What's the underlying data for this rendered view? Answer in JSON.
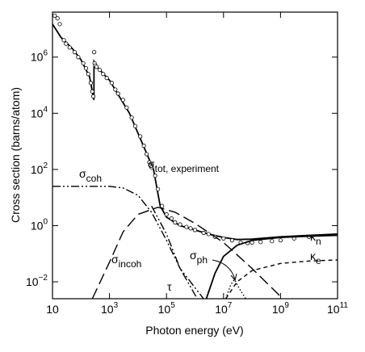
{
  "chart_data": {
    "type": "line",
    "xlabel": "Photon energy (eV)",
    "ylabel": "Cross section (barns/atom)",
    "xscale": "log",
    "yscale": "log",
    "xlim": [
      10,
      100000000000.0
    ],
    "ylim": [
      0.0025,
      40000000.0
    ],
    "xticks": [
      10,
      {
        "value": 1000,
        "label": "10",
        "sup": "3"
      },
      {
        "value": 100000,
        "label": "10",
        "sup": "5"
      },
      {
        "value": 10000000,
        "label": "10",
        "sup": "7"
      },
      {
        "value": 1000000000,
        "label": "10",
        "sup": "9"
      },
      {
        "value": 100000000000,
        "label": "10",
        "sup": "11"
      }
    ],
    "yticks": [
      {
        "value": 0.01,
        "label": "10",
        "sup": "−2"
      },
      {
        "value": 1,
        "label": "10",
        "sup": "0"
      },
      {
        "value": 100,
        "label": "10",
        "sup": "2"
      },
      {
        "value": 10000,
        "label": "10",
        "sup": "4"
      },
      {
        "value": 1000000,
        "label": "10",
        "sup": "6"
      }
    ],
    "series": [
      {
        "name": "σ",
        "name_sub": "tot, experiment",
        "color": "#000000",
        "style": "solid",
        "x": [
          10,
          20,
          50,
          100,
          200,
          284,
          285,
          400,
          1000,
          5000,
          35000,
          60000,
          100000,
          300000,
          1000000,
          3000000,
          10000000,
          30000000,
          100000000,
          1000000000,
          10000000000,
          100000000000
        ],
        "values": [
          15000000.0,
          5000000.0,
          2000000.0,
          800000.0,
          200000.0,
          30000.0,
          700000.0,
          400000.0,
          150000.0,
          10000.0,
          100,
          5,
          2,
          1,
          0.7,
          0.5,
          0.38,
          0.32,
          0.33,
          0.4,
          0.45,
          0.5
        ]
      },
      {
        "type": "scatter",
        "color": "#000000",
        "style": "circles",
        "x": [
          12,
          15,
          18,
          25,
          30,
          40,
          60,
          80,
          120,
          150,
          180,
          220,
          250,
          270,
          290,
          300,
          320,
          350,
          450,
          600,
          800,
          1200,
          1600,
          2000,
          3000,
          4000,
          6000,
          8000,
          12000,
          16000,
          20000,
          25000,
          30000,
          40000,
          50000,
          70000,
          100000,
          150000,
          200000,
          300000,
          500000,
          700000,
          1000000,
          2000000,
          3000000,
          5000000,
          10000000,
          20000000,
          40000000,
          70000000,
          100000000,
          200000000,
          500000000,
          1000000000,
          3000000000,
          10000000000
        ],
        "values": [
          30000000.0,
          24000000.0,
          15000000.0,
          4000000.0,
          3000000.0,
          2200000.0,
          1500000.0,
          1000000.0,
          600000.0,
          400000.0,
          250000.0,
          120000.0,
          60000.0,
          40000.0,
          1500000.0,
          600000.0,
          500000.0,
          450000.0,
          350000.0,
          250000.0,
          180000.0,
          120000.0,
          70000.0,
          50000.0,
          30000.0,
          16000.0,
          7000.0,
          3500.0,
          1500.0,
          700,
          350,
          180,
          120,
          60,
          20,
          5,
          2.5,
          1.8,
          1.3,
          1.1,
          0.9,
          0.8,
          0.7,
          0.55,
          0.5,
          0.4,
          0.35,
          0.3,
          0.25,
          0.24,
          0.25,
          0.26,
          0.28,
          0.3,
          0.35,
          0.4
        ]
      },
      {
        "name": "σ",
        "name_sub": "coh",
        "color": "#000000",
        "style": "dashdotdot",
        "x": [
          10,
          1000,
          3000,
          10000,
          30000,
          100000,
          300000,
          2000000
        ],
        "values": [
          25,
          25,
          22,
          12,
          3,
          0.3,
          0.03,
          0.0025
        ]
      },
      {
        "name": "σ",
        "name_sub": "incoh",
        "color": "#000000",
        "style": "longdash",
        "x": [
          250,
          1000,
          3000,
          10000,
          50000,
          200000,
          1000000,
          10000000,
          100000000,
          1200000000
        ],
        "values": [
          0.0025,
          0.05,
          0.6,
          2.5,
          4.5,
          3,
          1.2,
          0.25,
          0.03,
          0.0025
        ]
      },
      {
        "name": "τ",
        "color": "#000000",
        "style": "dashdotdot",
        "x": [
          30000,
          100000,
          300000,
          1200000
        ],
        "values": [
          5,
          0.5,
          0.03,
          0.0025
        ]
      },
      {
        "name": "σ",
        "name_sub": "ph",
        "color": "#000000",
        "style": "dotted",
        "x": [
          12000000,
          18000000,
          24000000,
          35000000,
          60000000
        ],
        "values": [
          0.0025,
          0.008,
          0.012,
          0.006,
          0.0025
        ]
      },
      {
        "name": "κ",
        "name_sub": "n",
        "color": "#000000",
        "style": "solid",
        "x": [
          2500000,
          5000000,
          10000000,
          30000000,
          100000000,
          1000000000,
          10000000000,
          100000000000
        ],
        "values": [
          0.0025,
          0.02,
          0.08,
          0.2,
          0.3,
          0.38,
          0.42,
          0.45
        ]
      },
      {
        "name": "κ",
        "name_sub": "e",
        "color": "#000000",
        "style": "shortdash",
        "x": [
          12000000,
          30000000,
          100000000,
          1000000000,
          10000000000,
          100000000000
        ],
        "values": [
          0.0025,
          0.01,
          0.025,
          0.045,
          0.055,
          0.06
        ]
      }
    ]
  }
}
